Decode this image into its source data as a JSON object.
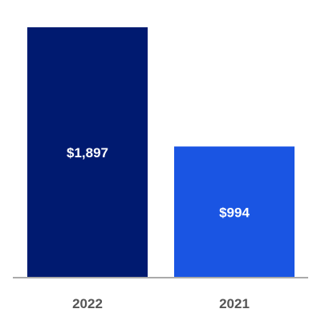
{
  "chart_data": {
    "type": "bar",
    "categories": [
      "2022",
      "2021"
    ],
    "values": [
      1897,
      994
    ],
    "value_labels": [
      "$1,897",
      "$994"
    ],
    "colors": [
      "#001a70",
      "#1a55e3"
    ],
    "axis_color": "#aaaaaa",
    "ylim": [
      0,
      1897
    ],
    "grid": false,
    "legend": "none"
  }
}
